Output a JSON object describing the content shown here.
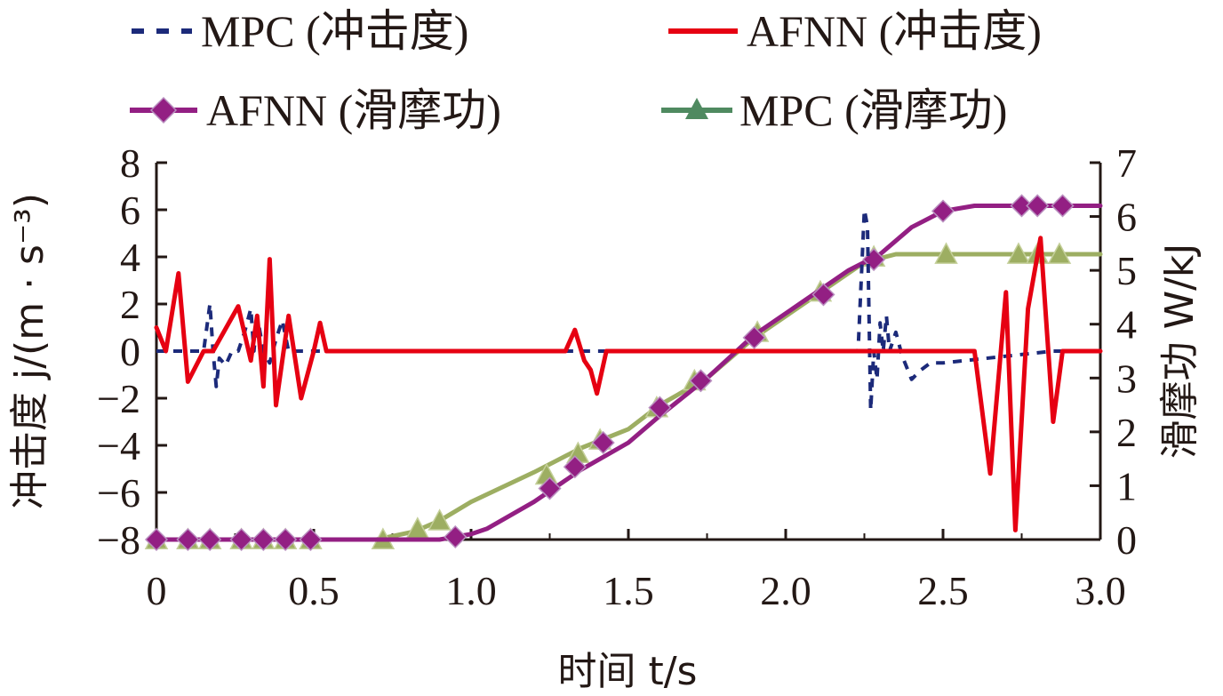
{
  "chart_data": {
    "type": "line",
    "xlabel": "时间 t/s",
    "ylabel_left": "冲击度 j/(m · s⁻³)",
    "ylabel_right": "滑摩功 W/kJ",
    "xlim": [
      0,
      3.0
    ],
    "ylim_left": [
      -8,
      8
    ],
    "ylim_right": [
      0,
      7
    ],
    "x_ticks": [
      "0",
      "0.5",
      "1.0",
      "1.5",
      "2.0",
      "2.5",
      "3.0"
    ],
    "y_left_ticks": [
      "−8",
      "−6",
      "−4",
      "−2",
      "0",
      "2",
      "4",
      "6",
      "8"
    ],
    "y_right_ticks": [
      "0",
      "1",
      "2",
      "3",
      "4",
      "5",
      "6",
      "7"
    ],
    "grid": false,
    "legend_position": "top",
    "series": [
      {
        "name": "MPC (冲击度)",
        "axis": "left",
        "style": "dashed",
        "color": "#1c2a7a",
        "x": [
          0.0,
          0.1,
          0.15,
          0.17,
          0.18,
          0.19,
          0.2,
          0.22,
          0.24,
          0.25,
          0.26,
          0.28,
          0.3,
          0.31,
          0.32,
          0.34,
          0.36,
          0.38,
          0.4,
          0.42,
          0.44,
          0.46,
          0.5,
          0.52,
          2.2,
          2.23,
          2.25,
          2.26,
          2.27,
          2.28,
          2.29,
          2.3,
          2.31,
          2.32,
          2.33,
          2.35,
          2.37,
          2.4,
          2.43,
          2.46,
          2.5,
          2.85,
          3.0
        ],
        "y": [
          0,
          0,
          0,
          2,
          0,
          -1.5,
          -0.3,
          -0.6,
          0,
          0,
          0,
          0.8,
          1.8,
          0,
          1.5,
          0,
          -0.5,
          0.5,
          1.3,
          0,
          0,
          0,
          0,
          0,
          0,
          0,
          6,
          5.3,
          -2.5,
          0,
          -1.2,
          1.2,
          0,
          1.5,
          0,
          0.8,
          -0.2,
          -1.2,
          -0.8,
          -0.5,
          -0.5,
          0,
          0
        ]
      },
      {
        "name": "AFNN (冲击度)",
        "axis": "left",
        "style": "solid",
        "color": "#e60012",
        "x": [
          0.0,
          0.03,
          0.07,
          0.1,
          0.15,
          0.18,
          0.26,
          0.3,
          0.32,
          0.34,
          0.36,
          0.38,
          0.42,
          0.46,
          0.5,
          0.52,
          0.54,
          0.58,
          1.3,
          1.33,
          1.36,
          1.38,
          1.4,
          1.43,
          2.6,
          2.65,
          2.7,
          2.73,
          2.77,
          2.81,
          2.85,
          2.88,
          3.0
        ],
        "y": [
          1,
          0,
          3.3,
          -1.3,
          0,
          0,
          1.9,
          -0.4,
          1.5,
          -1.5,
          3.9,
          -2.3,
          1.5,
          -2,
          0,
          1.2,
          0,
          0,
          0,
          0.9,
          -0.4,
          -0.8,
          -1.8,
          0,
          0,
          -5.2,
          2.5,
          -7.6,
          1.8,
          4.8,
          -3,
          0,
          0
        ]
      },
      {
        "name": "AFNN (滑摩功)",
        "axis": "right",
        "style": "solid",
        "marker": "diamond",
        "color": "#931f83",
        "x": [
          0.0,
          0.25,
          0.5,
          0.75,
          0.9,
          1.0,
          1.05,
          1.2,
          1.35,
          1.5,
          1.6,
          1.75,
          1.9,
          2.05,
          2.2,
          2.3,
          2.4,
          2.5,
          2.6,
          2.75,
          2.9,
          3.0
        ],
        "y": [
          0,
          0,
          0,
          0,
          0,
          0.1,
          0.2,
          0.7,
          1.3,
          1.8,
          2.3,
          3.0,
          3.8,
          4.4,
          5.0,
          5.3,
          5.8,
          6.1,
          6.2,
          6.2,
          6.2,
          6.2
        ],
        "markers_x": [
          0.0,
          0.1,
          0.17,
          0.27,
          0.34,
          0.41,
          0.49,
          0.95,
          1.25,
          1.33,
          1.42,
          1.6,
          1.73,
          1.9,
          2.12,
          2.28,
          2.5,
          2.75,
          2.8,
          2.88
        ],
        "markers_y": [
          0,
          0,
          0,
          0,
          0,
          0,
          0,
          0.05,
          0.95,
          1.35,
          1.8,
          2.45,
          2.95,
          3.75,
          4.55,
          5.2,
          6.1,
          6.2,
          6.2,
          6.2
        ]
      },
      {
        "name": "MPC (滑摩功)",
        "axis": "right",
        "style": "solid",
        "marker": "triangle",
        "color": "#4f8a60",
        "line_color": "#9dae62",
        "marker_color": "#9dae62",
        "x": [
          0.0,
          0.5,
          0.7,
          0.82,
          0.9,
          1.0,
          1.2,
          1.35,
          1.5,
          1.6,
          1.75,
          1.9,
          2.1,
          2.25,
          2.35,
          2.5,
          3.0
        ],
        "y": [
          0,
          0,
          0,
          0.15,
          0.35,
          0.7,
          1.25,
          1.7,
          2.05,
          2.5,
          3.0,
          3.75,
          4.55,
          5.15,
          5.3,
          5.3,
          5.3
        ],
        "markers_x": [
          0.0,
          0.1,
          0.17,
          0.27,
          0.34,
          0.41,
          0.49,
          0.72,
          0.83,
          0.9,
          1.24,
          1.34,
          1.41,
          1.59,
          1.71,
          1.91,
          2.11,
          2.28,
          2.51,
          2.74,
          2.8,
          2.87
        ],
        "markers_y": [
          0,
          0,
          0,
          0,
          0,
          0,
          0,
          0,
          0.2,
          0.35,
          1.2,
          1.6,
          1.85,
          2.45,
          2.95,
          3.85,
          4.6,
          5.25,
          5.3,
          5.3,
          5.3,
          5.3
        ]
      }
    ]
  }
}
